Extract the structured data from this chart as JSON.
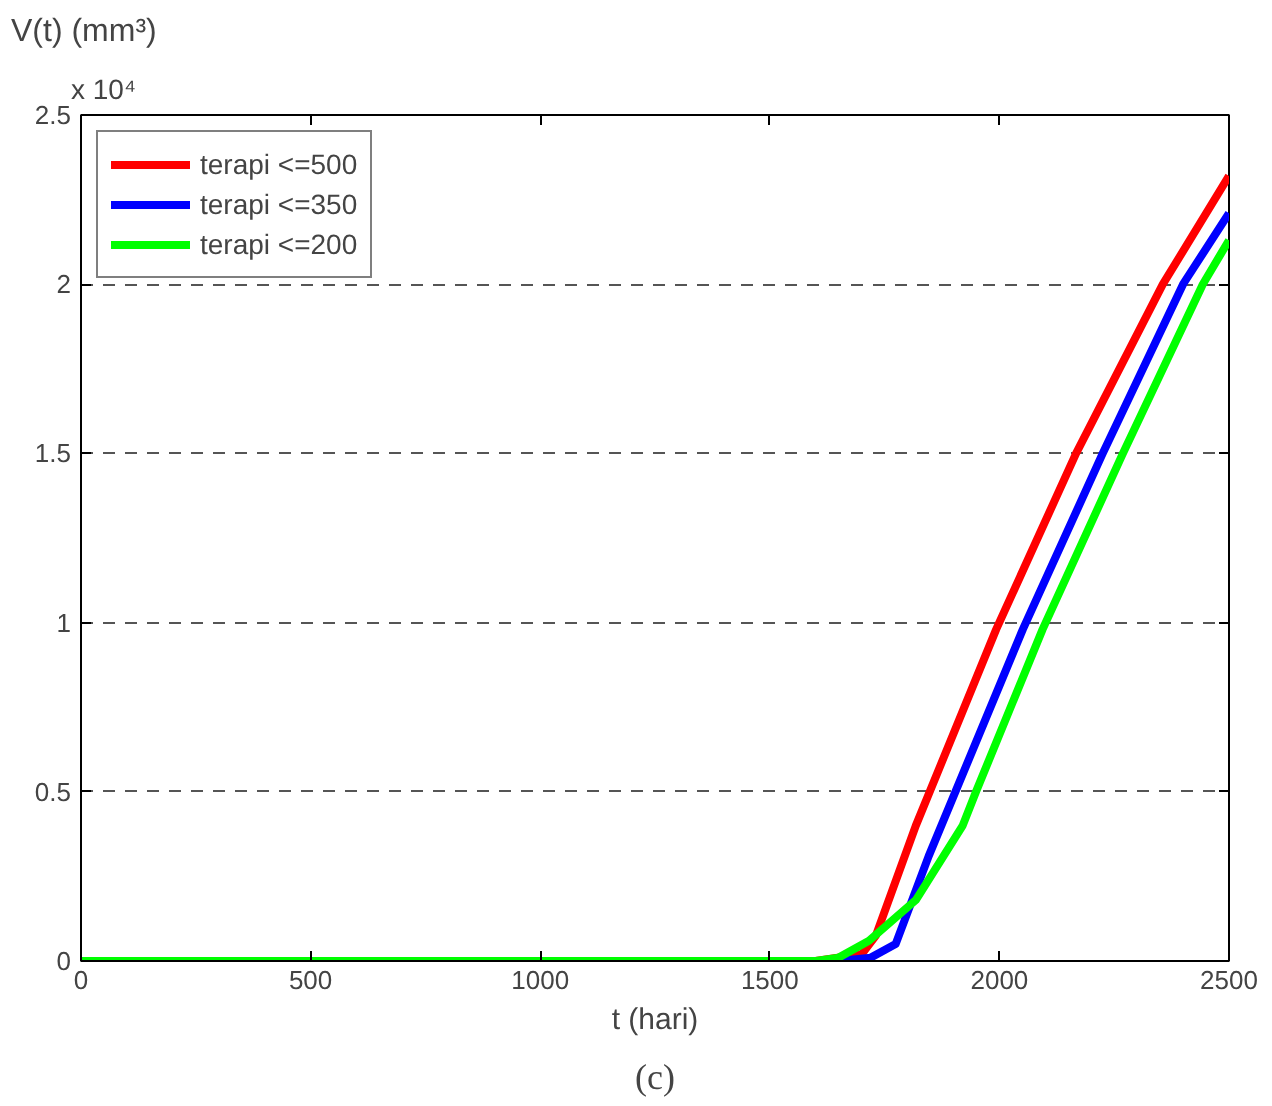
{
  "chart_data": {
    "type": "line",
    "xlabel": "t (hari)",
    "ylabel": "V(t) (mm³)",
    "annotations": [
      "x 10⁴",
      "(c)"
    ],
    "xlim": [
      0,
      2500
    ],
    "xticks": [
      0,
      500,
      1000,
      1500,
      2000,
      2500
    ],
    "ylim": [
      0,
      2.5
    ],
    "yticks": [
      0,
      0.5,
      1,
      1.5,
      2,
      2.5
    ],
    "grid": "y",
    "legend": "top left",
    "line_style": "solid",
    "series": [
      {
        "name": "terapi <=500",
        "color": "#ff0000",
        "x": [
          0,
          1600,
          1700,
          1731,
          1818,
          1993,
          2167,
          2356,
          2500
        ],
        "values": [
          0,
          0,
          0.02,
          0.075,
          0.4,
          0.98,
          1.5,
          2.0,
          2.32
        ]
      },
      {
        "name": "terapi <=350",
        "color": "#0000ff",
        "x": [
          0,
          1650,
          1720,
          1774,
          1846,
          2051,
          2225,
          2400,
          2500
        ],
        "values": [
          0,
          0,
          0.01,
          0.05,
          0.31,
          0.98,
          1.5,
          2.0,
          2.21
        ]
      },
      {
        "name": "terapi <=200",
        "color": "#00ff00",
        "x": [
          0,
          1600,
          1650,
          1716,
          1818,
          1920,
          1949,
          2094,
          2269,
          2443,
          2500
        ],
        "values": [
          0,
          0,
          0.01,
          0.06,
          0.18,
          0.4,
          0.5,
          0.98,
          1.5,
          2.0,
          2.13
        ]
      }
    ]
  }
}
